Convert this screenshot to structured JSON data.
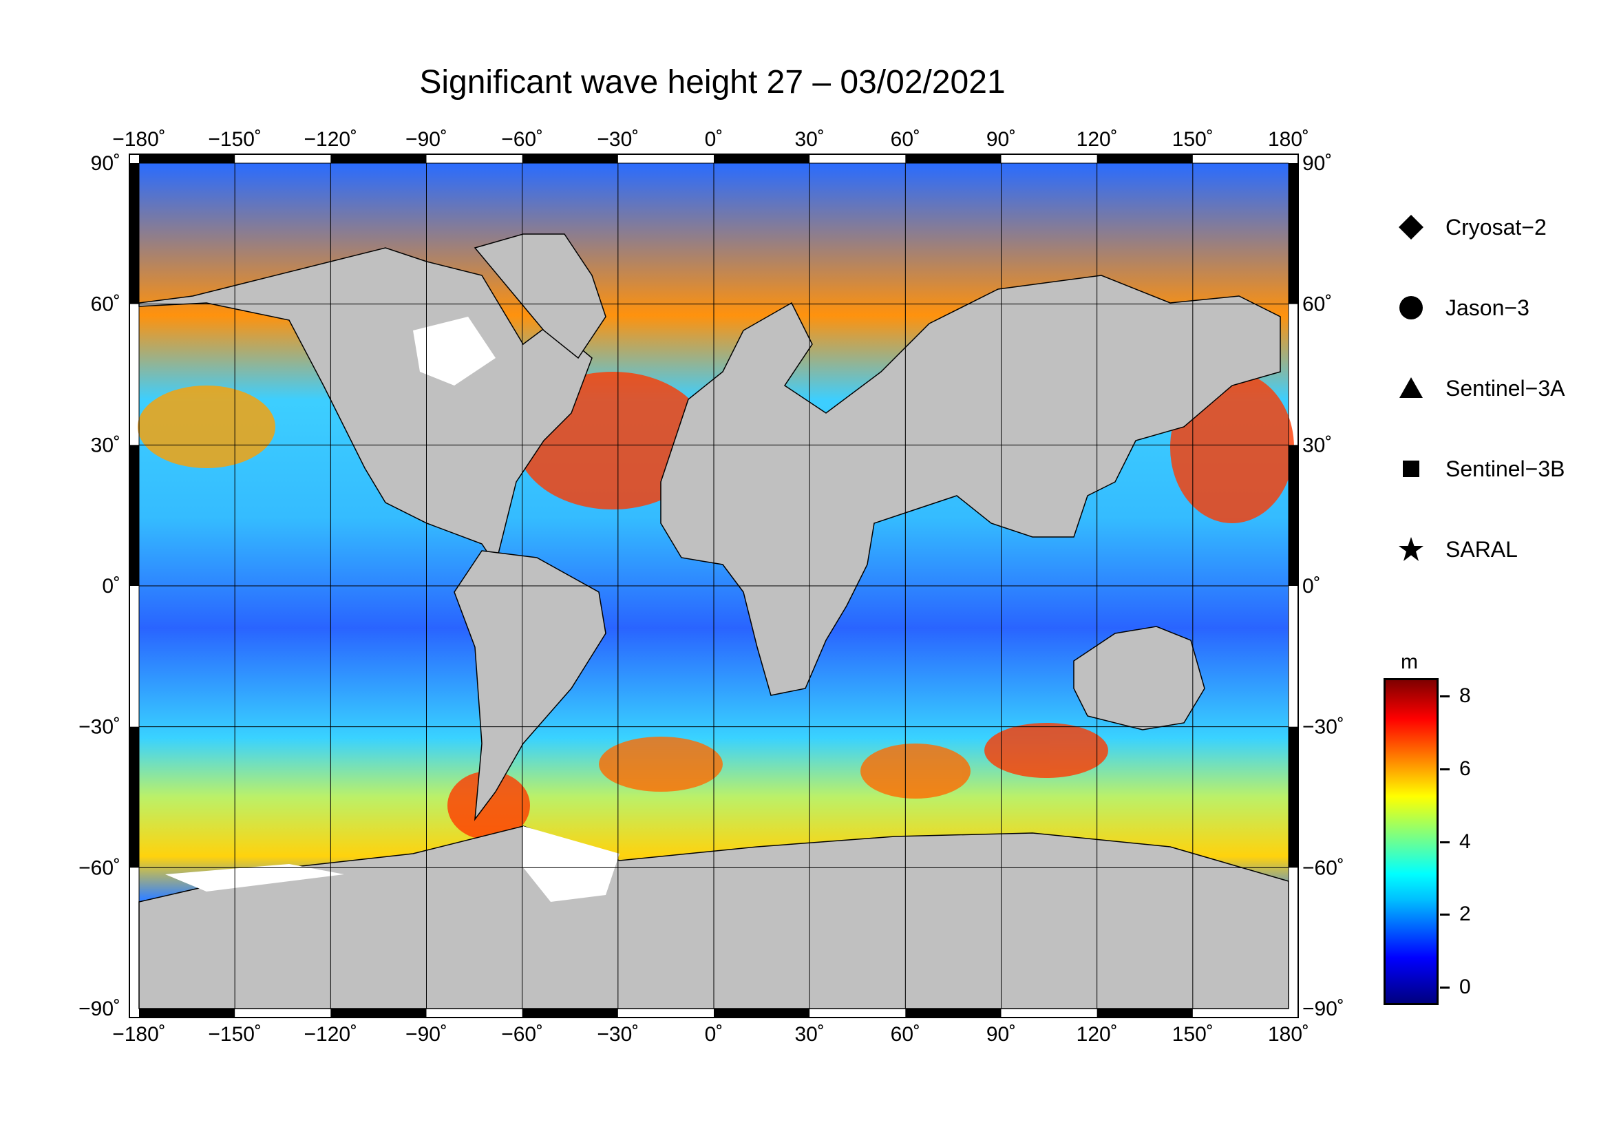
{
  "title": "Significant wave height 27 – 03/02/2021",
  "axes": {
    "lon_labels": [
      "−180˚",
      "−150˚",
      "−120˚",
      "−90˚",
      "−60˚",
      "−30˚",
      "0˚",
      "30˚",
      "60˚",
      "90˚",
      "120˚",
      "150˚",
      "180˚"
    ],
    "lat_labels": [
      "90˚",
      "60˚",
      "30˚",
      "0˚",
      "−30˚",
      "−60˚",
      "−90˚"
    ]
  },
  "legend": {
    "items": [
      {
        "label": "Cryosat−2",
        "symbol": "diamond-icon"
      },
      {
        "label": "Jason−3",
        "symbol": "circle-icon"
      },
      {
        "label": "Sentinel−3A",
        "symbol": "triangle-icon"
      },
      {
        "label": "Sentinel−3B",
        "symbol": "square-icon"
      },
      {
        "label": "SARAL",
        "symbol": "star-icon"
      }
    ]
  },
  "colorbar": {
    "unit": "m",
    "ticks": [
      "8",
      "6",
      "4",
      "2",
      "0"
    ],
    "range": [
      -0.5,
      8.5
    ]
  },
  "colors": {
    "land": "#c0c0c0",
    "ice": "#ffffff",
    "low": "#0000ff",
    "mid": "#00ffff",
    "high": "#ff0000"
  }
}
